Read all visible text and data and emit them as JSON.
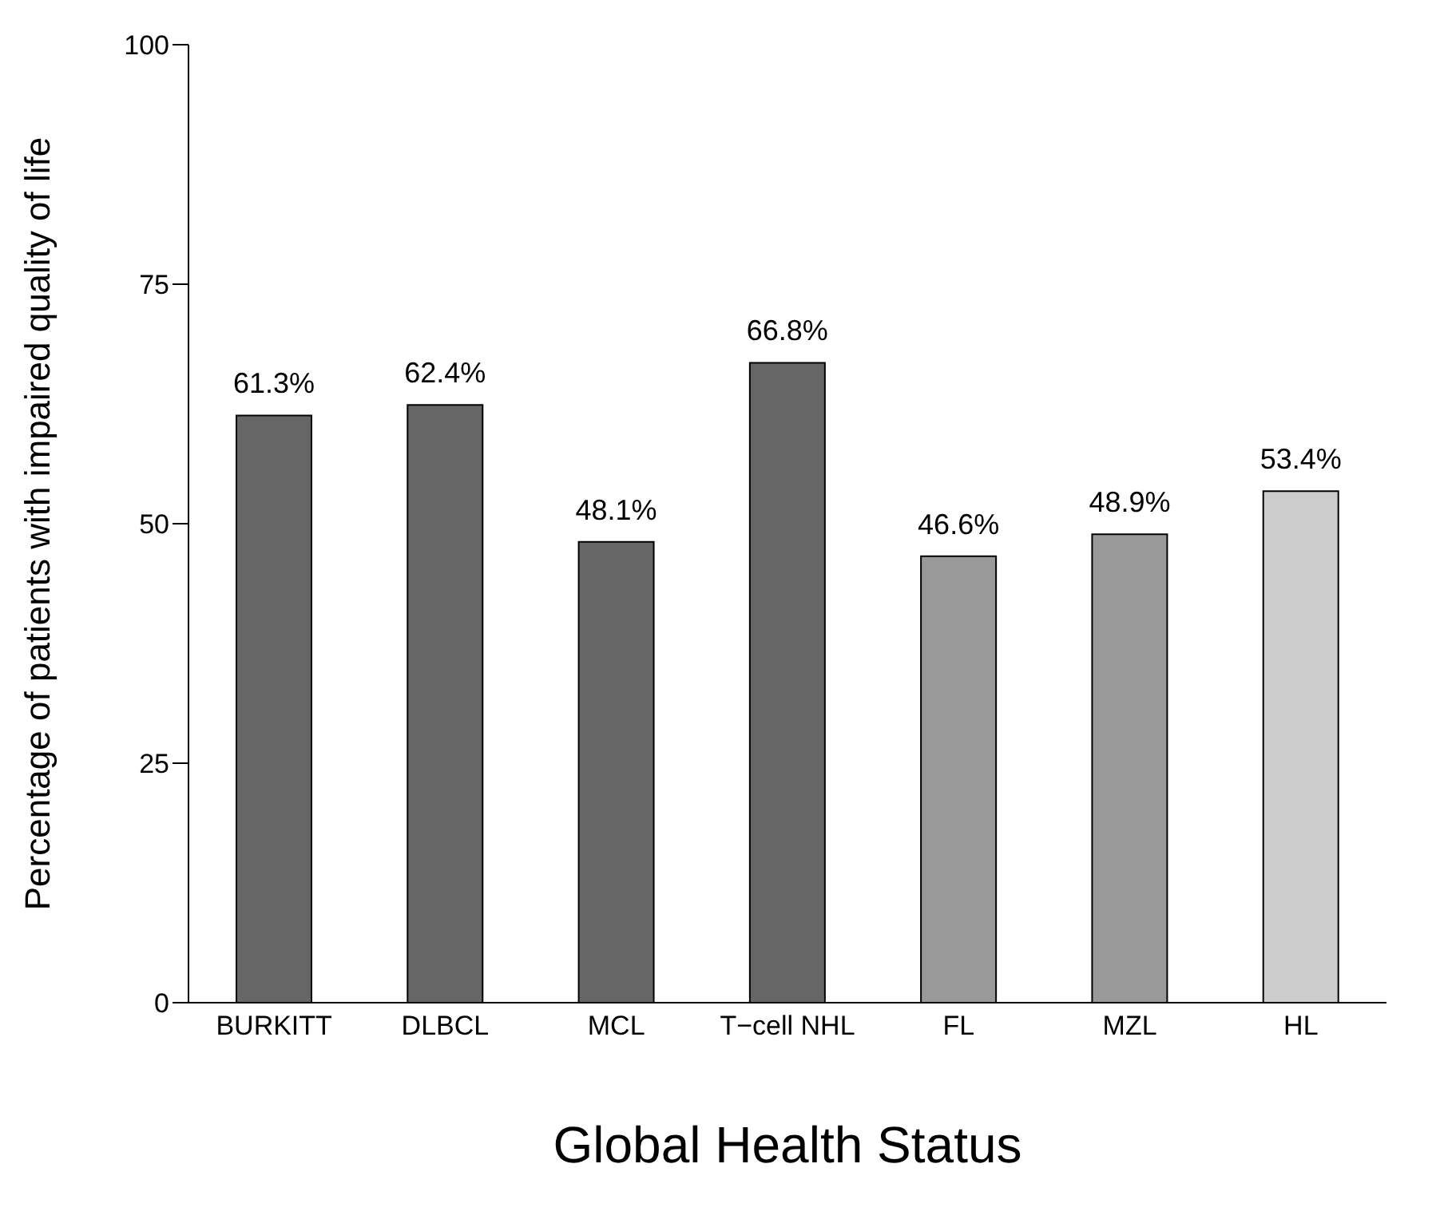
{
  "chart_data": {
    "type": "bar",
    "xlabel": "Global Health Status",
    "ylabel": "Percentage of patients with impaired quality of life",
    "categories": [
      "BURKITT",
      "DLBCL",
      "MCL",
      "T−cell NHL",
      "FL",
      "MZL",
      "HL"
    ],
    "values": [
      61.3,
      62.4,
      48.1,
      66.8,
      46.6,
      48.9,
      53.4
    ],
    "colors": [
      "#666666",
      "#666666",
      "#666666",
      "#666666",
      "#999999",
      "#999999",
      "#cccccc"
    ],
    "value_labels": [
      "61.3%",
      "62.4%",
      "48.1%",
      "66.8%",
      "46.6%",
      "48.9%",
      "53.4%"
    ],
    "ylim": [
      0,
      100
    ],
    "yticks": [
      0,
      25,
      50,
      75,
      100
    ],
    "grid": false,
    "legend": false
  }
}
